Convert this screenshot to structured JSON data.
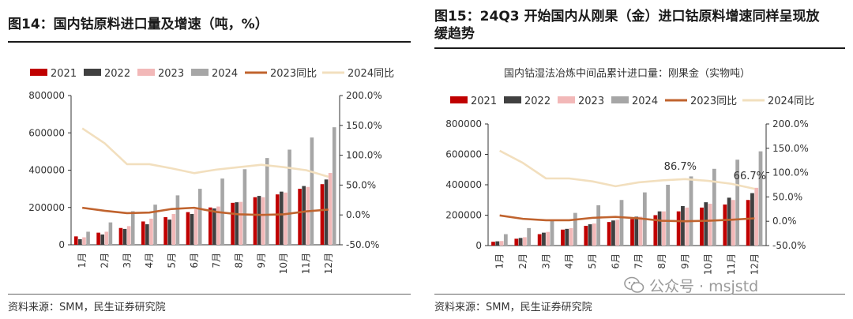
{
  "panels": [
    {
      "title": "图14：国内钴原料进口量及增速（吨，%）",
      "subtitle": "",
      "source": "资料来源：SMM，民生证券研究院"
    },
    {
      "title": "图15：24Q3 开始国内从刚果（金）进口钴原料增速同样呈现放缓趋势",
      "subtitle": "国内钴湿法冶炼中间品累计进口量：刚果金（实物吨）",
      "source": "资料来源：SMM，民生证券研究院"
    }
  ],
  "watermark": {
    "text": "公众号 · msjstd",
    "icon": "wechat-icon"
  },
  "colors": {
    "s2021": "#c00000",
    "s2022": "#404040",
    "s2023": "#f2b8b8",
    "s2024": "#a6a6a6",
    "l2023": "#c0632e",
    "l2024": "#f2dfbe"
  },
  "chart_data": [
    {
      "type": "bar",
      "categories": [
        "1月",
        "2月",
        "3月",
        "4月",
        "5月",
        "6月",
        "7月",
        "8月",
        "9月",
        "10月",
        "11月",
        "12月"
      ],
      "series": [
        {
          "name": "2021",
          "type": "bar",
          "axis": "left",
          "values": [
            45000,
            65000,
            90000,
            125000,
            148000,
            175000,
            200000,
            225000,
            255000,
            270000,
            300000,
            325000
          ]
        },
        {
          "name": "2022",
          "type": "bar",
          "axis": "left",
          "values": [
            30000,
            55000,
            85000,
            110000,
            135000,
            165000,
            195000,
            228000,
            262000,
            285000,
            315000,
            350000
          ]
        },
        {
          "name": "2023",
          "type": "bar",
          "axis": "left",
          "values": [
            40000,
            70000,
            100000,
            140000,
            165000,
            190000,
            205000,
            230000,
            255000,
            280000,
            310000,
            385000
          ]
        },
        {
          "name": "2024",
          "type": "bar",
          "axis": "left",
          "values": [
            70000,
            120000,
            180000,
            215000,
            265000,
            300000,
            355000,
            405000,
            465000,
            510000,
            575000,
            630000
          ]
        },
        {
          "name": "2023同比",
          "type": "line",
          "axis": "right",
          "values": [
            0.12,
            0.07,
            0.03,
            0.04,
            0.1,
            0.12,
            0.05,
            0.01,
            0.0,
            0.01,
            0.06,
            0.09
          ]
        },
        {
          "name": "2024同比",
          "type": "line",
          "axis": "right",
          "values": [
            1.45,
            1.2,
            0.85,
            0.85,
            0.78,
            0.7,
            0.76,
            0.8,
            0.84,
            0.8,
            0.75,
            0.64
          ]
        }
      ],
      "left_axis": {
        "min": 0,
        "max": 800000,
        "ticks": [
          "0",
          "200000",
          "400000",
          "600000",
          "800000"
        ]
      },
      "right_axis": {
        "min": -0.5,
        "max": 2.0,
        "ticks": [
          "-50.0%",
          "0.0%",
          "50.0%",
          "100.0%",
          "150.0%",
          "200.0%"
        ]
      },
      "legend": "top",
      "grid": false,
      "annotations": []
    },
    {
      "type": "bar",
      "categories": [
        "1月",
        "2月",
        "3月",
        "4月",
        "5月",
        "6月",
        "7月",
        "8月",
        "9月",
        "10月",
        "11月",
        "12月"
      ],
      "series": [
        {
          "name": "2021",
          "type": "bar",
          "axis": "left",
          "values": [
            25000,
            45000,
            75000,
            105000,
            130000,
            155000,
            175000,
            200000,
            225000,
            250000,
            270000,
            300000
          ]
        },
        {
          "name": "2022",
          "type": "bar",
          "axis": "left",
          "values": [
            28000,
            50000,
            85000,
            110000,
            140000,
            165000,
            190000,
            225000,
            260000,
            285000,
            315000,
            345000
          ]
        },
        {
          "name": "2023",
          "type": "bar",
          "axis": "left",
          "values": [
            30000,
            55000,
            90000,
            115000,
            145000,
            170000,
            190000,
            225000,
            250000,
            275000,
            300000,
            380000
          ]
        },
        {
          "name": "2024",
          "type": "bar",
          "axis": "left",
          "values": [
            75000,
            115000,
            165000,
            215000,
            265000,
            300000,
            350000,
            400000,
            455000,
            505000,
            565000,
            620000
          ]
        },
        {
          "name": "2023同比",
          "type": "line",
          "axis": "right",
          "values": [
            0.12,
            0.05,
            0.02,
            0.02,
            0.07,
            0.09,
            0.06,
            0.01,
            0.0,
            0.01,
            0.03,
            0.06
          ]
        },
        {
          "name": "2024同比",
          "type": "line",
          "axis": "right",
          "values": [
            1.45,
            1.2,
            0.88,
            0.88,
            0.82,
            0.72,
            0.8,
            0.84,
            0.867,
            0.83,
            0.77,
            0.667
          ]
        }
      ],
      "left_axis": {
        "min": 0,
        "max": 800000,
        "ticks": [
          "0",
          "200000",
          "400000",
          "600000",
          "800000"
        ]
      },
      "right_axis": {
        "min": -0.5,
        "max": 2.0,
        "ticks": [
          "-50.0%",
          "0.0%",
          "50.0%",
          "100.0%",
          "150.0%",
          "200.0%"
        ]
      },
      "legend": "top",
      "grid": false,
      "annotations": [
        {
          "text": "86.7%",
          "series": "2024同比",
          "index": 8
        },
        {
          "text": "66.7%",
          "series": "2024同比",
          "index": 11
        }
      ]
    }
  ]
}
